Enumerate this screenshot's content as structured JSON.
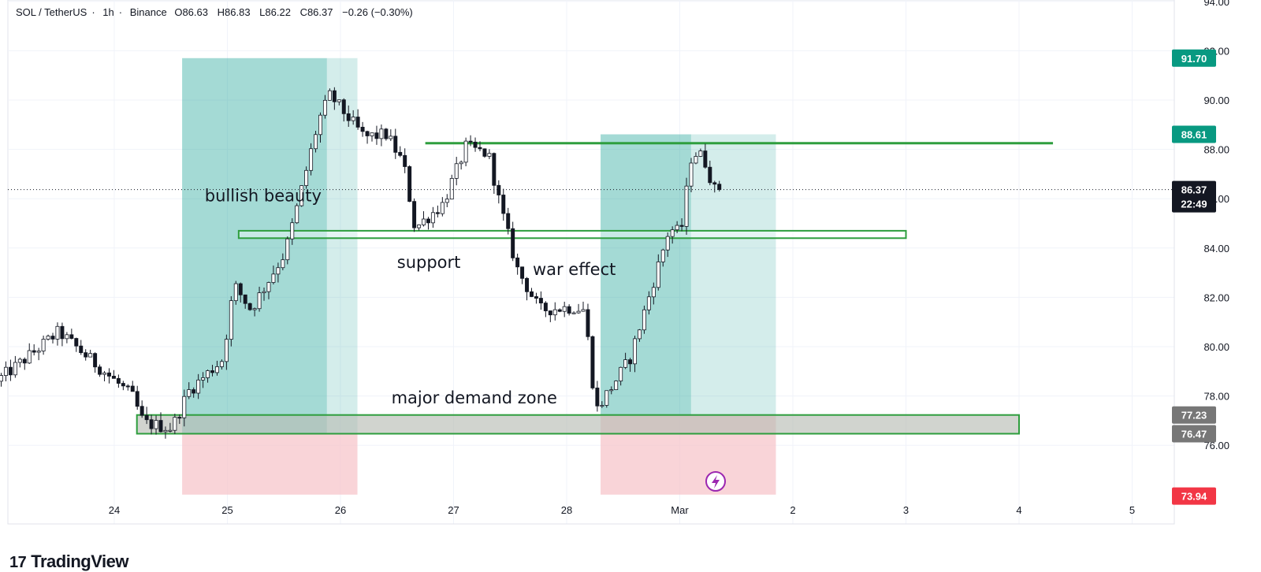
{
  "header": {
    "symbol": "SOL / TetherUS",
    "interval": "1h",
    "exchange": "Binance",
    "open": "O86.63",
    "high": "H86.83",
    "low": "L86.22",
    "close": "C86.37",
    "change": "−0.26 (−0.30%)"
  },
  "brand": {
    "name": "TradingView",
    "mark": "17"
  },
  "colors": {
    "up": "#ffffff",
    "down": "#131722",
    "profit_zone": "#26a69a",
    "loss_zone": "#f7c5cb",
    "zone_border": "#2e9e3e",
    "tag_green": "#089981",
    "tag_red": "#f23645",
    "tag_dark": "#131722"
  },
  "chart_data": {
    "type": "candlestick",
    "title": "",
    "ylim": [
      74,
      94
    ],
    "y_ticks": [
      "94.00",
      "92.00",
      "90.00",
      "88.00",
      "86.00",
      "84.00",
      "82.00",
      "80.00",
      "78.00",
      "76.00"
    ],
    "x_ticks": [
      "24",
      "25",
      "26",
      "27",
      "28",
      "Mar",
      "2",
      "3",
      "4",
      "5"
    ],
    "x_tick_days": [
      24,
      25,
      26,
      27,
      28,
      29,
      30,
      31,
      32,
      33
    ],
    "waypoints": [
      [
        23.0,
        78.6
      ],
      [
        23.2,
        79.3
      ],
      [
        23.55,
        80.6
      ],
      [
        23.9,
        79.2
      ],
      [
        24.2,
        78.0
      ],
      [
        24.3,
        76.9
      ],
      [
        24.55,
        76.7
      ],
      [
        24.7,
        78.2
      ],
      [
        25.0,
        79.5
      ],
      [
        25.1,
        82.5
      ],
      [
        25.25,
        81.5
      ],
      [
        25.55,
        83.8
      ],
      [
        25.65,
        85.5
      ],
      [
        25.85,
        89.2
      ],
      [
        25.95,
        90.2
      ],
      [
        26.25,
        88.5
      ],
      [
        26.45,
        88.6
      ],
      [
        26.6,
        87.4
      ],
      [
        26.7,
        84.8
      ],
      [
        26.95,
        85.8
      ],
      [
        27.15,
        88.1
      ],
      [
        27.35,
        87.8
      ],
      [
        27.45,
        85.8
      ],
      [
        27.6,
        83.2
      ],
      [
        27.8,
        81.5
      ],
      [
        28.1,
        81.6
      ],
      [
        28.2,
        81.5
      ],
      [
        28.3,
        77.4
      ],
      [
        28.6,
        79.5
      ],
      [
        28.8,
        82.5
      ],
      [
        28.95,
        84.8
      ],
      [
        29.05,
        84.6
      ],
      [
        29.15,
        87.9
      ],
      [
        29.25,
        87.7
      ],
      [
        29.35,
        86.37
      ]
    ],
    "candle_start_day": 23.0,
    "candle_count": 154,
    "zones": [
      {
        "name": "resistance-line",
        "x": [
          26.75,
          32.3
        ],
        "y": [
          88.25,
          88.25
        ]
      },
      {
        "name": "support-zone",
        "x": [
          25.1,
          31.0
        ],
        "y": [
          84.4,
          84.7
        ]
      },
      {
        "name": "major-demand-zone",
        "x": [
          24.2,
          32.0
        ],
        "y": [
          76.47,
          77.23
        ]
      }
    ],
    "positions": [
      {
        "name": "long-position-1",
        "x": [
          24.6,
          26.15
        ],
        "entry": 76.5,
        "target": 91.7,
        "stop": 74.0,
        "split_day": 25.88
      },
      {
        "name": "long-position-2",
        "x": [
          28.3,
          29.85
        ],
        "entry": 77.2,
        "target": 88.61,
        "stop": 74.0,
        "split_day": 29.1
      }
    ],
    "annotations": [
      {
        "name": "bullish-beauty-label",
        "text": "bullish beauty",
        "day": 24.8,
        "price": 85.9
      },
      {
        "name": "support-label",
        "text": "support",
        "day": 26.5,
        "price": 83.2
      },
      {
        "name": "war-effect-label",
        "text": "war effect",
        "day": 27.7,
        "price": 82.9
      },
      {
        "name": "major-demand-zone-label",
        "text": "major demand zone",
        "day": 26.45,
        "price": 77.7
      }
    ],
    "price_tags": [
      {
        "name": "price-tag-91-70",
        "label": "91.70",
        "price": 91.7,
        "color": "#089981"
      },
      {
        "name": "price-tag-88-61",
        "label": "88.61",
        "price": 88.61,
        "color": "#089981"
      },
      {
        "name": "price-tag-current",
        "label": "86.37",
        "sub": "22:49",
        "price": 86.37,
        "color": "#131722"
      },
      {
        "name": "price-tag-77-23",
        "label": "77.23",
        "price": 77.23,
        "color": "#777777"
      },
      {
        "name": "price-tag-76-47",
        "label": "76.47",
        "price": 76.47,
        "color": "#777777"
      },
      {
        "name": "price-tag-73-94",
        "label": "73.94",
        "price": 73.94,
        "color": "#f23645"
      }
    ],
    "current_price": 86.37
  }
}
